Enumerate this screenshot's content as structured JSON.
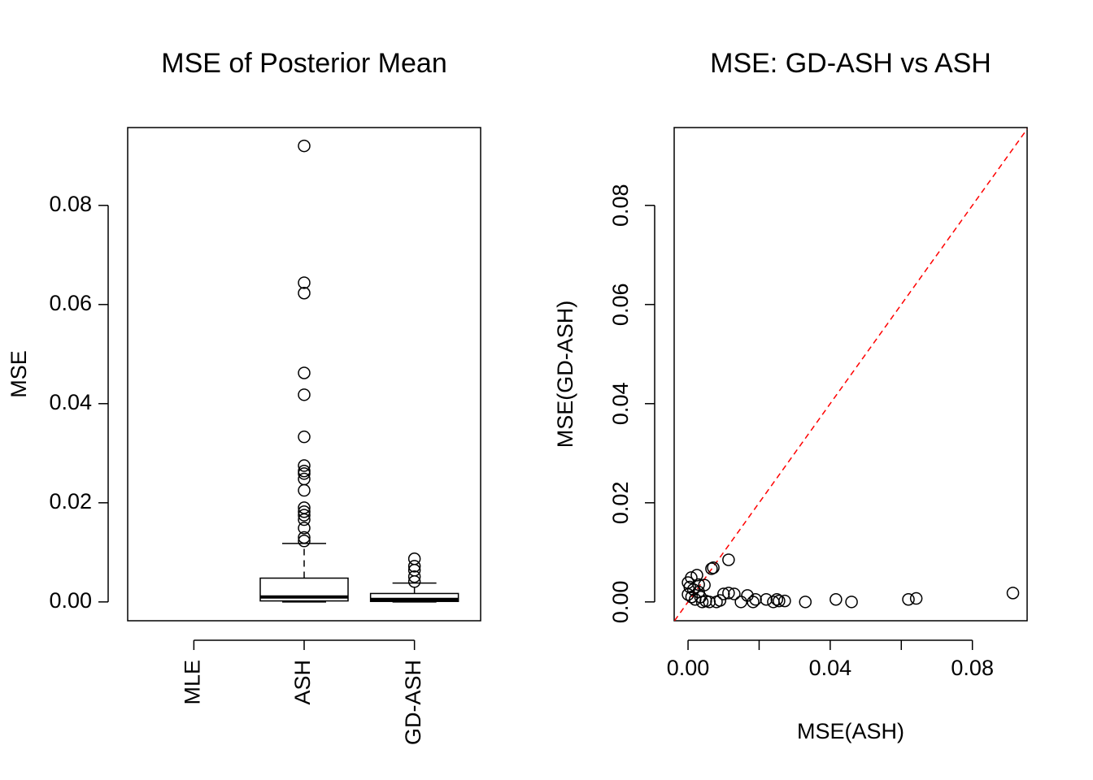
{
  "chart_data": [
    {
      "type": "boxplot",
      "title": "MSE of Posterior Mean",
      "ylabel": "MSE",
      "categories": [
        "MLE",
        "ASH",
        "GD-ASH"
      ],
      "boxes": [
        null,
        {
          "whisker_low": 0,
          "q1": 0.0002,
          "median": 0.001,
          "q3": 0.0048,
          "whisker_high": 0.0118,
          "outliers": [
            0.092,
            0.0644,
            0.0623,
            0.0462,
            0.0418,
            0.0333,
            0.0275,
            0.0264,
            0.0259,
            0.0248,
            0.0225,
            0.019,
            0.0182,
            0.0175,
            0.0166,
            0.0149,
            0.013,
            0.0123
          ]
        },
        {
          "whisker_low": 0,
          "q1": 0.0001,
          "median": 0.0005,
          "q3": 0.0017,
          "whisker_high": 0.0038,
          "outliers": [
            0.0087,
            0.0072,
            0.0064,
            0.0051,
            0.0041
          ]
        }
      ],
      "ylim": [
        -0.0038,
        0.0957
      ],
      "yticks": [
        {
          "value": 0,
          "label": "0.00"
        },
        {
          "value": 0.02,
          "label": "0.02"
        },
        {
          "value": 0.04,
          "label": "0.04"
        },
        {
          "value": 0.06,
          "label": "0.06"
        },
        {
          "value": 0.08,
          "label": "0.08"
        }
      ],
      "color": "#000000"
    },
    {
      "type": "scatter",
      "title": "MSE: GD-ASH vs ASH",
      "xlabel": "MSE(ASH)",
      "ylabel": "MSE(GD-ASH)",
      "x": [
        0.0914,
        0.0642,
        0.062,
        0.046,
        0.0416,
        0.033,
        0.0272,
        0.0256,
        0.025,
        0.024,
        0.022,
        0.019,
        0.0183,
        0.0167,
        0.0149,
        0.013,
        0.0114,
        0.0114,
        0.01,
        0.0071,
        0.0066,
        0.0046,
        0.0025,
        0.0009,
        0,
        0.001,
        0.002,
        0.003,
        0.0005,
        0.004,
        0.005,
        0.006,
        0.008,
        0.009,
        0.0015,
        0,
        0.003,
        0.0035
      ],
      "y": [
        0.0018,
        0.0007,
        0.0005,
        0,
        0.0005,
        0,
        0.0002,
        0.0002,
        0.0005,
        0,
        0.0005,
        0.0005,
        0,
        0.0013,
        0,
        0.0016,
        0.0018,
        0.0085,
        0.0016,
        0.0069,
        0.0067,
        0.0034,
        0.0054,
        0.0049,
        0.0039,
        0.001,
        0.0005,
        0.002,
        0.003,
        0,
        0.0002,
        0,
        0,
        0.0003,
        0.0025,
        0.0015,
        0.0035,
        0.001
      ],
      "xlim": [
        -0.0039,
        0.0954
      ],
      "ylim": [
        -0.0038,
        0.0957
      ],
      "xticks": [
        {
          "value": 0,
          "label": "0.00"
        },
        {
          "value": 0.04,
          "label": "0.04"
        },
        {
          "value": 0.08,
          "label": "0.08"
        }
      ],
      "xminor_ticks": [
        0.02,
        0.06
      ],
      "yticks": [
        {
          "value": 0,
          "label": "0.00"
        },
        {
          "value": 0.02,
          "label": "0.02"
        },
        {
          "value": 0.04,
          "label": "0.04"
        },
        {
          "value": 0.06,
          "label": "0.06"
        },
        {
          "value": 0.08,
          "label": "0.08"
        }
      ],
      "color": "#000000",
      "diagonal": true,
      "diagonal_color": "#ff0000"
    }
  ]
}
